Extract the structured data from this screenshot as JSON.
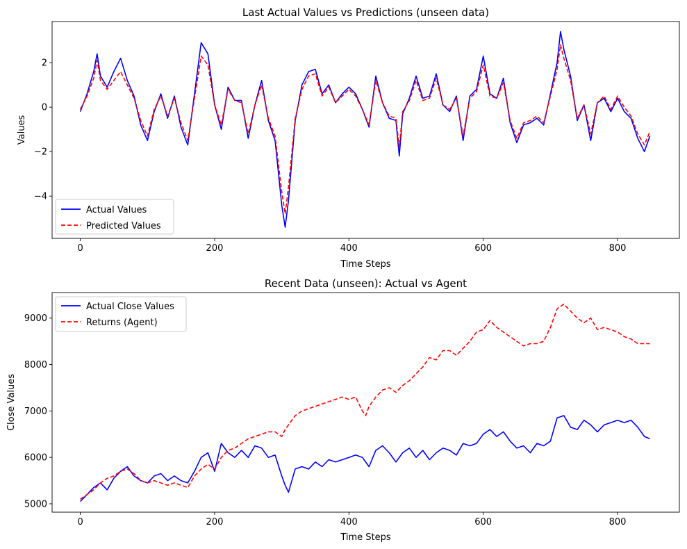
{
  "chart_data": [
    {
      "type": "line",
      "title": "Last Actual Values vs Predictions (unseen data)",
      "xlabel": "Time Steps",
      "ylabel": "Values",
      "xlim": [
        -42,
        892
      ],
      "ylim": [
        -5.9,
        3.85
      ],
      "xticks": [
        0,
        200,
        400,
        600,
        800
      ],
      "yticks": [
        -4,
        -2,
        0,
        2
      ],
      "xtick_labels": [
        "0",
        "200",
        "400",
        "600",
        "800"
      ],
      "ytick_labels": [
        "−4",
        "−2",
        "0",
        "2"
      ],
      "legend": "lower-left",
      "grid": false,
      "series": [
        {
          "name": "Actual Values",
          "color": "#0000ff",
          "style": "solid",
          "x": [
            0,
            10,
            20,
            25,
            30,
            40,
            50,
            60,
            70,
            80,
            90,
            100,
            110,
            120,
            130,
            140,
            150,
            160,
            170,
            180,
            190,
            200,
            210,
            220,
            230,
            240,
            250,
            260,
            270,
            280,
            290,
            300,
            305,
            310,
            320,
            330,
            340,
            350,
            360,
            370,
            380,
            390,
            400,
            410,
            420,
            430,
            440,
            450,
            460,
            470,
            475,
            480,
            490,
            500,
            510,
            520,
            530,
            540,
            550,
            560,
            570,
            580,
            590,
            600,
            610,
            620,
            630,
            640,
            650,
            660,
            670,
            680,
            690,
            700,
            710,
            715,
            720,
            730,
            740,
            750,
            760,
            770,
            780,
            790,
            800,
            810,
            820,
            830,
            840,
            848
          ],
          "y": [
            -0.2,
            0.6,
            1.6,
            2.4,
            1.4,
            0.9,
            1.6,
            2.2,
            1.2,
            0.5,
            -0.8,
            -1.5,
            -0.2,
            0.6,
            -0.5,
            0.5,
            -0.9,
            -1.7,
            0.6,
            2.9,
            2.4,
            0.1,
            -1.0,
            0.9,
            0.3,
            0.3,
            -1.4,
            0.1,
            1.2,
            -0.6,
            -1.5,
            -4.4,
            -5.4,
            -4.2,
            -0.6,
            1.0,
            1.6,
            1.7,
            0.6,
            1.0,
            0.2,
            0.6,
            0.9,
            0.6,
            -0.1,
            -0.9,
            1.4,
            0.2,
            -0.5,
            -0.6,
            -2.2,
            -0.3,
            0.4,
            1.4,
            0.4,
            0.5,
            1.5,
            0.1,
            -0.2,
            0.5,
            -1.5,
            0.5,
            0.8,
            2.3,
            0.6,
            0.4,
            1.3,
            -0.7,
            -1.6,
            -0.8,
            -0.7,
            -0.5,
            -0.8,
            0.6,
            2.0,
            3.4,
            2.6,
            1.4,
            -0.6,
            0.1,
            -1.5,
            0.2,
            0.4,
            -0.2,
            0.4,
            -0.2,
            -0.5,
            -1.4,
            -2.0,
            -1.3
          ]
        },
        {
          "name": "Predicted Values",
          "color": "#ff0000",
          "style": "dashed",
          "x": [
            0,
            10,
            20,
            25,
            30,
            40,
            50,
            60,
            70,
            80,
            90,
            100,
            110,
            120,
            130,
            140,
            150,
            160,
            170,
            180,
            190,
            200,
            210,
            220,
            230,
            240,
            250,
            260,
            270,
            280,
            290,
            300,
            305,
            310,
            320,
            330,
            340,
            350,
            360,
            370,
            380,
            390,
            400,
            410,
            420,
            430,
            440,
            450,
            460,
            470,
            475,
            480,
            490,
            500,
            510,
            520,
            530,
            540,
            550,
            560,
            570,
            580,
            590,
            600,
            610,
            620,
            630,
            640,
            650,
            660,
            670,
            680,
            690,
            700,
            710,
            715,
            720,
            730,
            740,
            750,
            760,
            770,
            780,
            790,
            800,
            810,
            820,
            830,
            840,
            848
          ],
          "y": [
            -0.1,
            0.5,
            1.3,
            2.1,
            1.2,
            0.8,
            1.2,
            1.6,
            1.0,
            0.4,
            -0.6,
            -1.3,
            -0.1,
            0.5,
            -0.4,
            0.4,
            -0.7,
            -1.5,
            0.4,
            2.3,
            1.9,
            0.1,
            -0.8,
            0.8,
            0.3,
            0.2,
            -1.2,
            0.1,
            1.0,
            -0.5,
            -1.3,
            -3.8,
            -4.8,
            -3.6,
            -0.5,
            0.8,
            1.4,
            1.5,
            0.5,
            0.9,
            0.2,
            0.5,
            0.8,
            0.5,
            -0.1,
            -0.8,
            1.2,
            0.2,
            -0.4,
            -0.5,
            -1.8,
            -0.2,
            0.3,
            1.2,
            0.3,
            0.4,
            1.3,
            0.1,
            -0.1,
            0.4,
            -1.3,
            0.4,
            0.7,
            1.9,
            0.5,
            0.4,
            1.1,
            -0.6,
            -1.4,
            -0.7,
            -0.6,
            -0.4,
            -0.7,
            0.5,
            1.7,
            2.8,
            2.2,
            1.2,
            -0.5,
            0.1,
            -1.2,
            0.2,
            0.5,
            -0.1,
            0.5,
            0.0,
            -0.4,
            -1.2,
            -1.7,
            -1.1
          ]
        }
      ]
    },
    {
      "type": "line",
      "title": "Recent Data (unseen): Actual vs Agent",
      "xlabel": "Time Steps",
      "ylabel": "Close Values",
      "xlim": [
        -42,
        892
      ],
      "ylim": [
        4820,
        9550
      ],
      "xticks": [
        0,
        200,
        400,
        600,
        800
      ],
      "yticks": [
        5000,
        6000,
        7000,
        8000,
        9000
      ],
      "xtick_labels": [
        "0",
        "200",
        "400",
        "600",
        "800"
      ],
      "ytick_labels": [
        "5000",
        "6000",
        "7000",
        "8000",
        "9000"
      ],
      "legend": "upper-left",
      "grid": false,
      "series": [
        {
          "name": "Actual Close Values",
          "color": "#0000ff",
          "style": "solid",
          "x": [
            0,
            10,
            20,
            30,
            40,
            50,
            60,
            70,
            80,
            90,
            100,
            110,
            120,
            130,
            140,
            150,
            160,
            170,
            180,
            190,
            200,
            210,
            220,
            230,
            240,
            250,
            260,
            270,
            280,
            290,
            300,
            305,
            310,
            320,
            330,
            340,
            350,
            360,
            370,
            380,
            390,
            400,
            410,
            420,
            430,
            440,
            450,
            460,
            470,
            480,
            490,
            500,
            510,
            520,
            530,
            540,
            550,
            560,
            570,
            580,
            590,
            600,
            610,
            620,
            630,
            640,
            650,
            660,
            670,
            680,
            690,
            700,
            710,
            720,
            730,
            740,
            750,
            760,
            770,
            780,
            790,
            800,
            810,
            820,
            830,
            840,
            848
          ],
          "y": [
            5050,
            5200,
            5350,
            5450,
            5300,
            5550,
            5700,
            5800,
            5600,
            5500,
            5450,
            5600,
            5650,
            5500,
            5600,
            5500,
            5450,
            5700,
            6000,
            6100,
            5700,
            6300,
            6100,
            6000,
            6150,
            6000,
            6250,
            6200,
            6000,
            6050,
            5600,
            5400,
            5250,
            5750,
            5800,
            5750,
            5900,
            5800,
            5950,
            5900,
            5950,
            6000,
            6050,
            6000,
            5800,
            6150,
            6250,
            6100,
            5900,
            6100,
            6200,
            6000,
            6150,
            5950,
            6100,
            6200,
            6150,
            6050,
            6300,
            6250,
            6300,
            6500,
            6600,
            6450,
            6550,
            6350,
            6200,
            6250,
            6100,
            6300,
            6250,
            6350,
            6850,
            6900,
            6650,
            6600,
            6800,
            6700,
            6550,
            6700,
            6750,
            6800,
            6750,
            6800,
            6650,
            6450,
            6400
          ]
        },
        {
          "name": "Returns (Agent)",
          "color": "#ff0000",
          "style": "dashed",
          "x": [
            0,
            10,
            20,
            30,
            40,
            50,
            60,
            70,
            80,
            90,
            100,
            110,
            120,
            130,
            140,
            150,
            160,
            170,
            180,
            190,
            200,
            210,
            220,
            230,
            240,
            250,
            260,
            270,
            280,
            290,
            300,
            305,
            310,
            320,
            330,
            340,
            350,
            360,
            370,
            380,
            390,
            400,
            410,
            420,
            425,
            430,
            440,
            450,
            460,
            470,
            480,
            490,
            500,
            510,
            520,
            530,
            540,
            550,
            560,
            570,
            580,
            590,
            600,
            610,
            620,
            630,
            640,
            650,
            660,
            670,
            680,
            690,
            700,
            710,
            720,
            730,
            740,
            750,
            760,
            770,
            780,
            790,
            800,
            810,
            820,
            830,
            840,
            848
          ],
          "y": [
            5100,
            5200,
            5300,
            5450,
            5550,
            5600,
            5700,
            5750,
            5650,
            5500,
            5450,
            5500,
            5450,
            5400,
            5450,
            5400,
            5350,
            5600,
            5750,
            5850,
            5750,
            6000,
            6150,
            6200,
            6300,
            6400,
            6450,
            6500,
            6550,
            6550,
            6450,
            6600,
            6700,
            6900,
            7000,
            7050,
            7100,
            7150,
            7200,
            7250,
            7300,
            7250,
            7300,
            7000,
            6900,
            7100,
            7300,
            7450,
            7500,
            7400,
            7550,
            7650,
            7800,
            7950,
            8150,
            8100,
            8300,
            8300,
            8200,
            8350,
            8500,
            8700,
            8750,
            8950,
            8800,
            8700,
            8600,
            8500,
            8400,
            8450,
            8450,
            8500,
            8800,
            9200,
            9300,
            9150,
            9000,
            8900,
            9000,
            8750,
            8800,
            8750,
            8700,
            8600,
            8550,
            8450,
            8450,
            8450
          ]
        }
      ]
    }
  ]
}
